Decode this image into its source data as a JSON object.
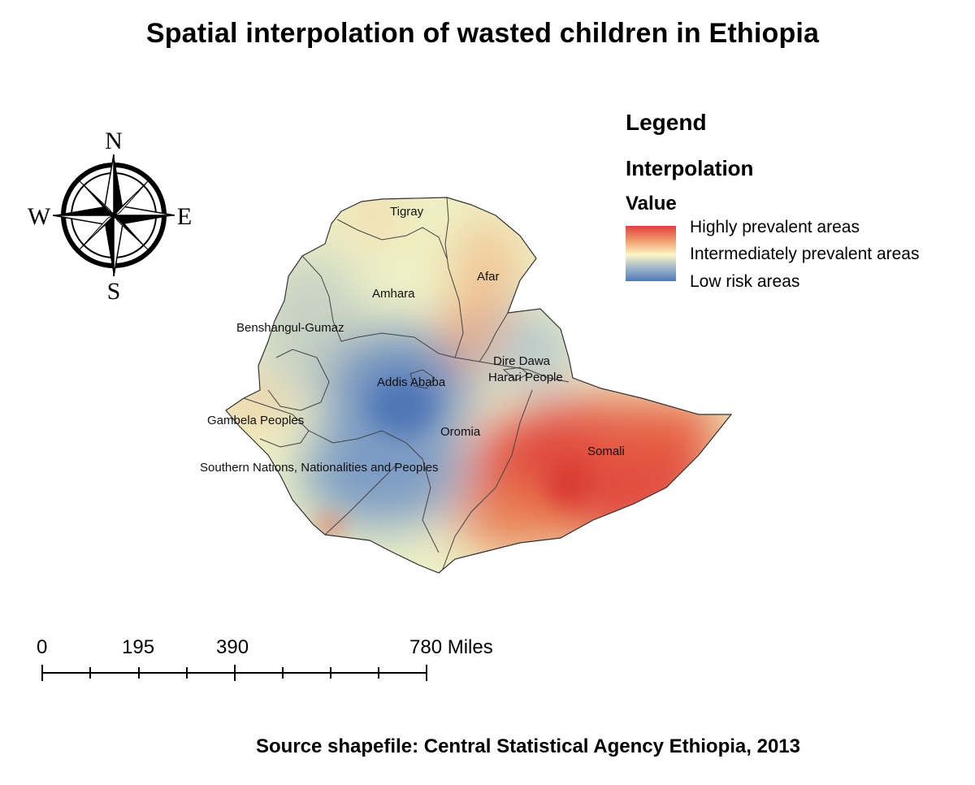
{
  "title": "Spatial interpolation of wasted children in Ethiopia",
  "compass": {
    "north": "N",
    "south": "S",
    "east": "E",
    "west": "W"
  },
  "regions": {
    "tigray": "Tigray",
    "afar": "Afar",
    "amhara": "Amhara",
    "benshangul": "Benshangul-Gumaz",
    "addis": "Addis Ababa",
    "dire_dawa": "Dire Dawa",
    "harari": "Harari People",
    "gambela": "Gambela Peoples",
    "oromia": "Oromia",
    "somali": "Somali",
    "snnp": "Southern Nations, Nationalities and Peoples"
  },
  "legend": {
    "title": "Legend",
    "subtitle": "Interpolation",
    "field": "Value",
    "items": [
      {
        "label": "Highly prevalent areas",
        "color": "#e0403a"
      },
      {
        "label": "Intermediately prevalent areas",
        "color": "#fbf7c4"
      },
      {
        "label": "Low risk areas",
        "color": "#4f7ab7"
      }
    ]
  },
  "scale_bar": {
    "labels": [
      "0",
      "195",
      "390",
      "780 Miles"
    ]
  },
  "source": "Source shapefile: Central Statistical Agency Ethiopia, 2013"
}
